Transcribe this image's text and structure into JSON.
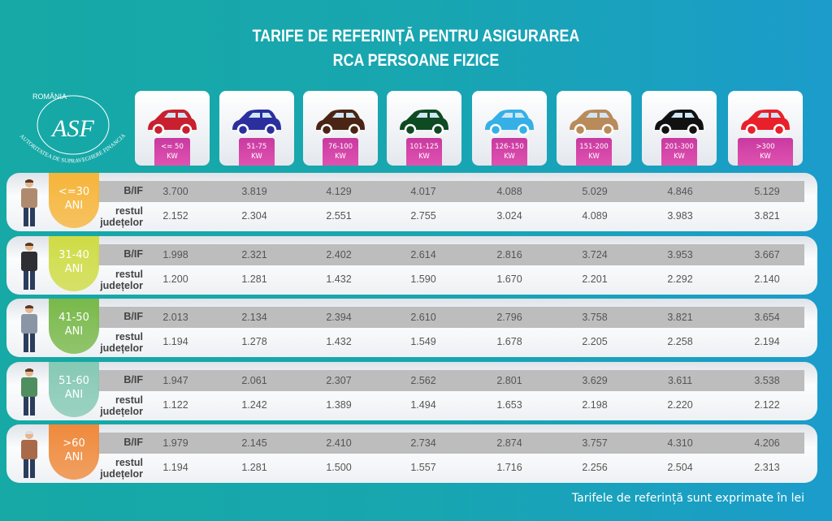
{
  "title": {
    "line1": "TARIFE DE REFERINȚĂ PENTRU ASIGURAREA",
    "line2": "RCA PERSOANE FIZICE"
  },
  "logo": {
    "text_top": "ROMÂNIA",
    "monogram": "ASF",
    "text_arc": "AUTORITATEA DE SUPRAVEGHERE FINANCIARĂ"
  },
  "columns": [
    {
      "range": "<= 50",
      "unit": "KW",
      "car_color": "#c8202e",
      "icon": "hatchback-car-icon"
    },
    {
      "range": "51-75",
      "unit": "KW",
      "car_color": "#2b2f9e",
      "icon": "compact-car-icon"
    },
    {
      "range": "76-100",
      "unit": "KW",
      "car_color": "#4a2414",
      "icon": "sedan-car-icon"
    },
    {
      "range": "101-125",
      "unit": "KW",
      "car_color": "#0e4a22",
      "icon": "minivan-car-icon"
    },
    {
      "range": "126-150",
      "unit": "KW",
      "car_color": "#35b0e6",
      "icon": "sedan-car-icon"
    },
    {
      "range": "151-200",
      "unit": "KW",
      "car_color": "#b98a5a",
      "icon": "suv-car-icon"
    },
    {
      "range": "201-300",
      "unit": "KW",
      "car_color": "#111111",
      "icon": "convertible-car-icon"
    },
    {
      "range": ">300",
      "unit": "KW",
      "car_color": "#e8202a",
      "icon": "sports-car-icon"
    }
  ],
  "row_labels": {
    "bif": "B/IF",
    "rest_line1": "restul",
    "rest_line2": "județelor"
  },
  "groups": [
    {
      "age": "<=30",
      "unit": "ANI",
      "color": "#f6b53a",
      "bif": [
        "3.700",
        "3.819",
        "4.129",
        "4.017",
        "4.088",
        "5.029",
        "4.846",
        "5.129"
      ],
      "rest": [
        "2.152",
        "2.304",
        "2.551",
        "2.755",
        "3.024",
        "4.089",
        "3.983",
        "3.821"
      ]
    },
    {
      "age": "31-40",
      "unit": "ANI",
      "color": "#cfdc45",
      "bif": [
        "1.998",
        "2.321",
        "2.402",
        "2.614",
        "2.816",
        "3.724",
        "3.953",
        "3.667"
      ],
      "rest": [
        "1.200",
        "1.281",
        "1.432",
        "1.590",
        "1.670",
        "2.201",
        "2.292",
        "2.140"
      ]
    },
    {
      "age": "41-50",
      "unit": "ANI",
      "color": "#79b94a",
      "bif": [
        "2.013",
        "2.134",
        "2.394",
        "2.610",
        "2.796",
        "3.758",
        "3.821",
        "3.654"
      ],
      "rest": [
        "1.194",
        "1.278",
        "1.432",
        "1.549",
        "1.678",
        "2.205",
        "2.258",
        "2.194"
      ]
    },
    {
      "age": "51-60",
      "unit": "ANI",
      "color": "#86c9b4",
      "bif": [
        "1.947",
        "2.061",
        "2.307",
        "2.562",
        "2.801",
        "3.629",
        "3.611",
        "3.538"
      ],
      "rest": [
        "1.122",
        "1.242",
        "1.389",
        "1.494",
        "1.653",
        "2.198",
        "2.220",
        "2.122"
      ]
    },
    {
      "age": ">60",
      "unit": "ANI",
      "color": "#ef8a3c",
      "bif": [
        "1.979",
        "2.145",
        "2.410",
        "2.734",
        "2.874",
        "3.757",
        "4.310",
        "4.206"
      ],
      "rest": [
        "1.194",
        "1.281",
        "1.500",
        "1.557",
        "1.716",
        "2.256",
        "2.504",
        "2.313"
      ]
    }
  ],
  "footer": "Tarifele de referință sunt exprimate în lei"
}
